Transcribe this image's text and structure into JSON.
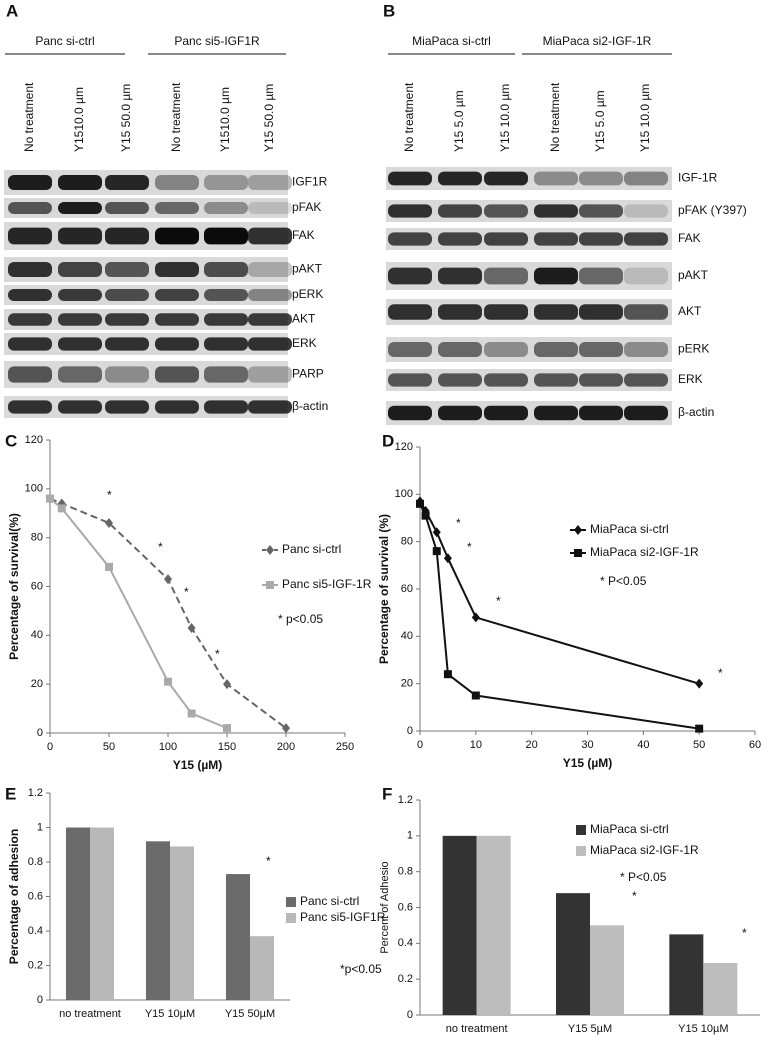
{
  "blots": [
    {
      "label": "A",
      "groups": [
        "Panc si-ctrl",
        "Panc si5-IGF1R"
      ],
      "lanes": [
        "No treatment",
        "Y1510.0 µm",
        "Y15 50.0 µm",
        "No treatment",
        "Y1510.0 µm",
        "Y15 50.0 µm"
      ],
      "rows": [
        "IGF1R",
        "pFAK",
        "FAK",
        "pAKT",
        "pERK",
        "AKT",
        "ERK",
        "PARP",
        "β-actin"
      ]
    },
    {
      "label": "B",
      "groups": [
        "MiaPaca si-ctrl",
        "MiaPaca si2-IGF-1R"
      ],
      "lanes": [
        "No treatment",
        "Y15 5.0 µm",
        "Y15 10.0 µm",
        "No treatment",
        "Y15 5.0 µm",
        "Y15 10.0 µm"
      ],
      "rows": [
        "IGF-1R",
        "pFAK (Y397)",
        "FAK",
        "pAKT",
        "AKT",
        "pERK",
        "ERK",
        "β-actin"
      ]
    }
  ],
  "chart_data": [
    {
      "type": "line",
      "label": "C",
      "ylabel": "Percentage of survival(%)",
      "xlabel": "Y15 (µM)",
      "xlim": [
        0,
        250
      ],
      "xticks": [
        0,
        50,
        100,
        150,
        200,
        250
      ],
      "ylim": [
        0,
        120
      ],
      "yticks": [
        0,
        20,
        40,
        60,
        80,
        100,
        120
      ],
      "series": [
        {
          "name": "Panc si-ctrl",
          "color": "#666666",
          "marker": "diamond",
          "dashed": true,
          "x": [
            0,
            10,
            50,
            100,
            120,
            150,
            200
          ],
          "values": [
            96,
            94,
            86,
            63,
            43,
            20,
            2
          ]
        },
        {
          "name": "Panc si5-IGF-1R",
          "color": "#aaaaaa",
          "marker": "square",
          "dashed": false,
          "x": [
            0,
            10,
            50,
            100,
            120,
            150
          ],
          "values": [
            96,
            92,
            68,
            21,
            8,
            2
          ]
        }
      ],
      "annotations": [
        "*",
        "*",
        "*",
        "*",
        "* p<0.05"
      ]
    },
    {
      "type": "line",
      "label": "D",
      "ylabel": "Percentage of survival (%)",
      "xlabel": "Y15 (µM)",
      "xlim": [
        0,
        60
      ],
      "xticks": [
        0,
        10,
        20,
        30,
        40,
        50,
        60
      ],
      "ylim": [
        0,
        120
      ],
      "yticks": [
        0,
        20,
        40,
        60,
        80,
        100,
        120
      ],
      "series": [
        {
          "name": "MiaPaca si-ctrl",
          "color": "#111111",
          "marker": "diamond",
          "dashed": false,
          "x": [
            0,
            1,
            3,
            5,
            10,
            50
          ],
          "values": [
            97,
            93,
            84,
            73,
            48,
            20
          ]
        },
        {
          "name": "MiaPaca si2-IGF-1R",
          "color": "#111111",
          "marker": "square",
          "dashed": false,
          "x": [
            0,
            1,
            3,
            5,
            10,
            50
          ],
          "values": [
            96,
            91,
            76,
            24,
            15,
            1
          ]
        }
      ],
      "annotations": [
        "*",
        "*",
        "*",
        "*",
        "* P<0.05"
      ]
    },
    {
      "type": "bar",
      "label": "E",
      "ylabel": "Percentage of adhesion",
      "categories": [
        "no treatment",
        "Y15 10µM",
        "Y15 50µM"
      ],
      "ylim": [
        0,
        1.2
      ],
      "yticks": [
        0,
        0.2,
        0.4,
        0.6,
        0.8,
        1,
        1.2
      ],
      "series": [
        {
          "name": "Panc si-ctrl",
          "color": "#6b6b6b",
          "values": [
            1,
            0.92,
            0.73
          ]
        },
        {
          "name": "Panc si5-IGF1R",
          "color": "#b8b8b8",
          "values": [
            1,
            0.89,
            0.37
          ]
        }
      ],
      "annotations": [
        "*",
        "*p<0.05"
      ]
    },
    {
      "type": "bar",
      "label": "F",
      "ylabel": "Percent of Adhesio",
      "categories": [
        "no treatment",
        "Y15 5µM",
        "Y15 10µM"
      ],
      "ylim": [
        0,
        1.2
      ],
      "yticks": [
        0,
        0.2,
        0.4,
        0.6,
        0.8,
        1,
        1.2
      ],
      "series": [
        {
          "name": "MiaPaca si-ctrl",
          "color": "#333333",
          "values": [
            1,
            0.68,
            0.45
          ]
        },
        {
          "name": "MiaPaca si2-IGF-1R",
          "color": "#bdbdbd",
          "values": [
            1,
            0.5,
            0.29
          ]
        }
      ],
      "annotations": [
        "*",
        "*",
        "* P<0.05"
      ]
    }
  ]
}
